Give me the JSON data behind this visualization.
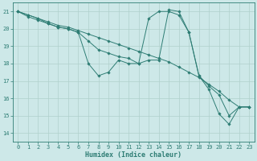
{
  "title": "",
  "xlabel": "Humidex (Indice chaleur)",
  "xlim": [
    -0.5,
    23.5
  ],
  "ylim": [
    13.5,
    21.5
  ],
  "xticks": [
    0,
    1,
    2,
    3,
    4,
    5,
    6,
    7,
    8,
    9,
    10,
    11,
    12,
    13,
    14,
    15,
    16,
    17,
    18,
    19,
    20,
    21,
    22,
    23
  ],
  "yticks": [
    14,
    15,
    16,
    17,
    18,
    19,
    20,
    21
  ],
  "bg_color": "#cde8e8",
  "line_color": "#2e7d74",
  "grid_color": "#b0d0cc",
  "lines": [
    {
      "x": [
        0,
        1,
        2,
        3,
        4,
        5,
        6,
        7,
        8,
        9,
        10,
        11,
        12,
        13,
        14,
        15,
        16,
        17,
        18,
        19,
        20,
        21,
        22,
        23
      ],
      "y": [
        21,
        20.8,
        20.6,
        20.4,
        20.2,
        20.1,
        19.9,
        19.7,
        19.5,
        19.3,
        19.1,
        18.9,
        18.7,
        18.5,
        18.3,
        18.1,
        17.8,
        17.5,
        17.2,
        16.8,
        16.4,
        15.9,
        15.5,
        15.5
      ]
    },
    {
      "x": [
        0,
        1,
        2,
        3,
        4,
        5,
        6,
        7,
        8,
        9,
        10,
        11,
        12,
        13,
        14,
        15,
        16,
        17,
        18,
        19,
        20,
        21,
        22,
        23
      ],
      "y": [
        21,
        20.8,
        20.6,
        20.3,
        20.1,
        20.0,
        19.8,
        18.0,
        17.3,
        17.5,
        18.2,
        18.0,
        18.0,
        20.6,
        21.0,
        21.0,
        20.8,
        19.8,
        17.3,
        16.5,
        15.1,
        14.5,
        15.5,
        15.5
      ]
    },
    {
      "x": [
        0,
        1,
        2,
        3,
        4,
        5,
        6,
        7,
        8,
        9,
        10,
        11,
        12,
        13,
        14,
        15,
        16,
        17,
        18,
        19,
        20,
        21,
        22,
        23
      ],
      "y": [
        21,
        20.7,
        20.5,
        20.3,
        20.1,
        20.0,
        19.8,
        19.3,
        18.8,
        18.6,
        18.4,
        18.3,
        18.0,
        18.2,
        18.2,
        21.1,
        21.0,
        19.8,
        17.3,
        16.7,
        16.2,
        15.0,
        15.5,
        15.5
      ]
    }
  ]
}
